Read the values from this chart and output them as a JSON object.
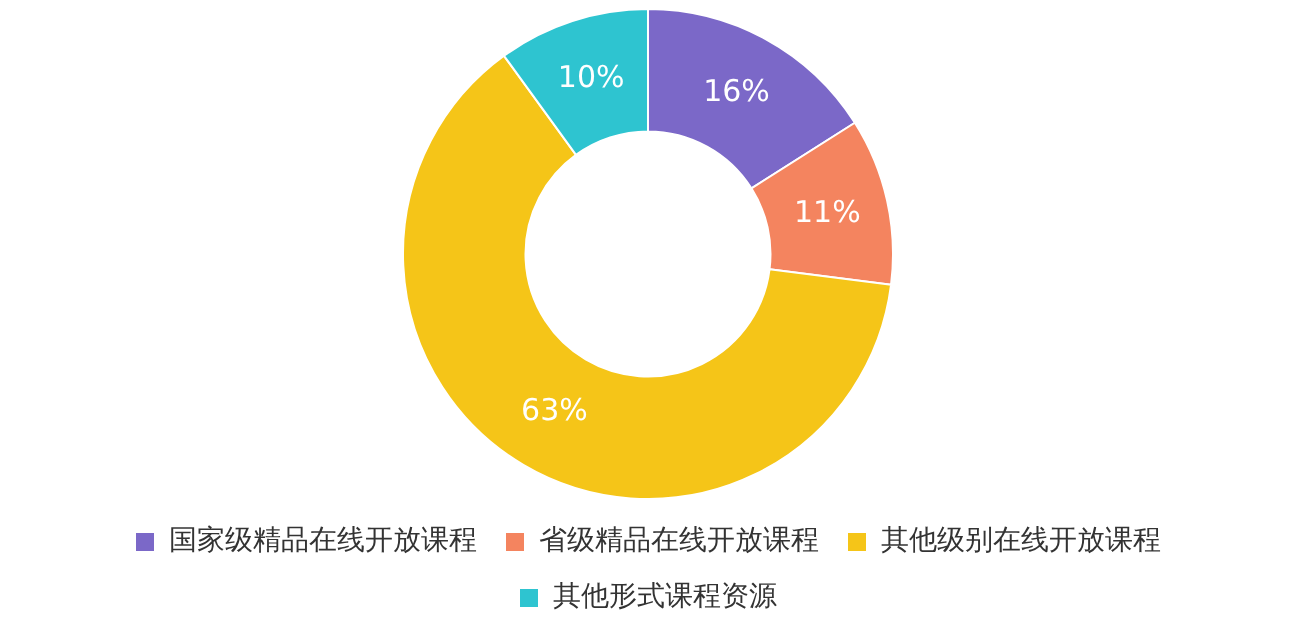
{
  "chart_data": {
    "type": "donut",
    "categories": [
      "国家级精品在线开放课程",
      "省级精品在线开放课程",
      "其他级别在线开放课程",
      "其他形式课程资源"
    ],
    "values": [
      16,
      11,
      63,
      10
    ],
    "value_labels": [
      "16%",
      "11%",
      "63%",
      "10%"
    ],
    "colors": [
      "#7b68c8",
      "#f4845f",
      "#f5c518",
      "#2ec4d0"
    ],
    "legend": "bottom"
  }
}
